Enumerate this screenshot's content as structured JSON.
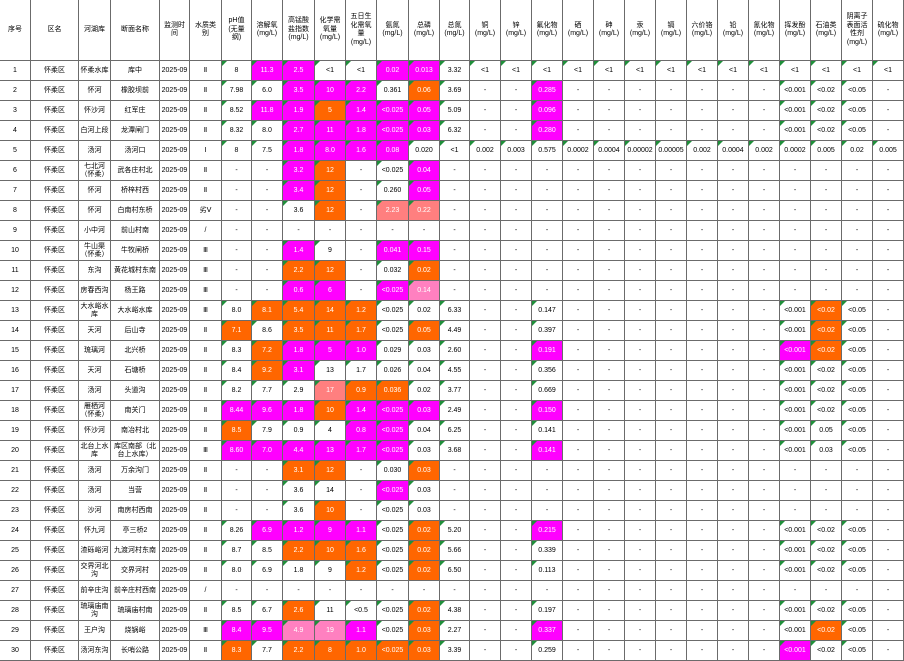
{
  "grid": {
    "columns": [
      "序号",
      "区名",
      "河湖库",
      "断面名称",
      "监测时间",
      "水质类别",
      "pH值(无量纲)",
      "溶解氧(mg/L)",
      "高锰酸盐指数(mg/L)",
      "化学需氧量(mg/L)",
      "五日生化需氧量(mg/L)",
      "氨氮(mg/L)",
      "总磷(mg/L)",
      "总氮(mg/L)",
      "铜(mg/L)",
      "锌(mg/L)",
      "氟化物(mg/L)",
      "硒(mg/L)",
      "砷(mg/L)",
      "汞(mg/L)",
      "镉(mg/L)",
      "六价铬(mg/L)",
      "铅(mg/L)",
      "氰化物(mg/L)",
      "挥发酚(mg/L)",
      "石油类(mg/L)",
      "阴离子表面活性剂(mg/L)",
      "硫化物(mg/L)"
    ],
    "palette": {
      "m": "#ff00ff",
      "o": "#ff6600",
      "s": "#ff7f7f",
      "p": "#ff80c0"
    },
    "triangle_color": "#1f8f3a",
    "rows": [
      [
        "1",
        "怀柔区",
        "怀柔水库",
        "库中",
        "2025-09",
        "Ⅱ",
        "8",
        {
          "v": "11.3",
          "bg": "m"
        },
        {
          "v": "2.5",
          "bg": "m"
        },
        "<1",
        "<1",
        {
          "v": "0.02",
          "bg": "m"
        },
        {
          "v": "0.013",
          "bg": "m"
        },
        "3.32",
        "<1",
        "<1",
        "<1",
        "<1",
        "<1",
        "<1",
        "<1",
        "<1",
        "<1",
        "<1",
        "<1",
        "<1",
        "<1",
        "<1"
      ],
      [
        "2",
        "怀柔区",
        "怀河",
        "橡胶坝前",
        "2025-09",
        "Ⅱ",
        "7.98",
        "6.0",
        {
          "v": "3.5",
          "bg": "m"
        },
        {
          "v": "10",
          "bg": "m"
        },
        {
          "v": "2.2",
          "bg": "m"
        },
        "0.361",
        {
          "v": "0.06",
          "bg": "o"
        },
        "3.69",
        "-",
        "-",
        {
          "v": "0.285",
          "bg": "m"
        },
        "-",
        "-",
        "-",
        "-",
        "-",
        "-",
        "-",
        "<0.001",
        "<0.02",
        "<0.05",
        "-"
      ],
      [
        "3",
        "怀柔区",
        "怀沙河",
        "红军庄",
        "2025-09",
        "Ⅱ",
        "8.52",
        {
          "v": "11.8",
          "bg": "m"
        },
        {
          "v": "1.9",
          "bg": "m"
        },
        {
          "v": "5",
          "bg": "o"
        },
        {
          "v": "1.4",
          "bg": "m"
        },
        {
          "v": "<0.025",
          "bg": "m"
        },
        {
          "v": "0.05",
          "bg": "m"
        },
        "5.09",
        "-",
        "-",
        {
          "v": "0.096",
          "bg": "m"
        },
        "-",
        "-",
        "-",
        "-",
        "-",
        "-",
        "-",
        "<0.001",
        "<0.02",
        "<0.05",
        "-"
      ],
      [
        "4",
        "怀柔区",
        "白河上段",
        "龙潭闸门",
        "2025-09",
        "Ⅱ",
        "8.32",
        "8.0",
        {
          "v": "2.7",
          "bg": "m"
        },
        {
          "v": "11",
          "bg": "m"
        },
        {
          "v": "1.8",
          "bg": "m"
        },
        {
          "v": "<0.025",
          "bg": "m"
        },
        {
          "v": "0.03",
          "bg": "m"
        },
        "6.32",
        "-",
        "-",
        {
          "v": "0.280",
          "bg": "m"
        },
        "-",
        "-",
        "-",
        "-",
        "-",
        "-",
        "-",
        "<0.001",
        "<0.02",
        "<0.05",
        "-"
      ],
      [
        "5",
        "怀柔区",
        "汤河",
        "汤河口",
        "2025-09",
        "Ⅰ",
        "8",
        "7.5",
        {
          "v": "1.8",
          "bg": "m"
        },
        {
          "v": "8.0",
          "bg": "m"
        },
        {
          "v": "1.6",
          "bg": "m"
        },
        {
          "v": "0.08",
          "bg": "m"
        },
        "0.020",
        "<1",
        "0.002",
        "0.003",
        "0.575",
        "0.0002",
        "0.0004",
        "0.00002",
        "0.00005",
        "0.002",
        "0.0004",
        "0.002",
        "0.0002",
        "0.005",
        "0.02",
        "0.005"
      ],
      [
        "6",
        "怀柔区",
        "七北河（怀柔）",
        "武各庄村北",
        "2025-09",
        "Ⅱ",
        "-",
        "-",
        {
          "v": "3.2",
          "bg": "m"
        },
        {
          "v": "12",
          "bg": "o"
        },
        "-",
        "<0.025",
        {
          "v": "0.04",
          "bg": "m"
        },
        "-",
        "-",
        "-",
        "-",
        "-",
        "-",
        "-",
        "-",
        "-",
        "-",
        "-",
        "-",
        "-",
        "-",
        "-"
      ],
      [
        "7",
        "怀柔区",
        "怀河",
        "桥梓村西",
        "2025-09",
        "Ⅱ",
        "-",
        "-",
        {
          "v": "3.4",
          "bg": "m"
        },
        {
          "v": "12",
          "bg": "o"
        },
        "-",
        "0.260",
        {
          "v": "0.05",
          "bg": "m"
        },
        "-",
        "-",
        "-",
        "-",
        "-",
        "-",
        "-",
        "-",
        "-",
        "-",
        "-",
        "-",
        "-",
        "-",
        "-"
      ],
      [
        "8",
        "怀柔区",
        "怀河",
        "白南村东桥",
        "2025-09",
        "劣Ⅴ",
        "-",
        "-",
        "3.6",
        {
          "v": "12",
          "bg": "o"
        },
        "-",
        {
          "v": "2.23",
          "bg": "s"
        },
        {
          "v": "0.22",
          "bg": "s"
        },
        "-",
        "-",
        "-",
        "-",
        "-",
        "-",
        "-",
        "-",
        "-",
        "-",
        "-",
        "-",
        "-",
        "-",
        "-"
      ],
      [
        "9",
        "怀柔区",
        "小中河",
        "前山村南",
        "2025-09",
        "/",
        "-",
        "-",
        "-",
        "-",
        "-",
        "-",
        "-",
        "-",
        "-",
        "-",
        "-",
        "-",
        "-",
        "-",
        "-",
        "-",
        "-",
        "-",
        "-",
        "-",
        "-",
        "-"
      ],
      [
        "10",
        "怀柔区",
        "牛山渠（怀柔）",
        "牛牧闸桥",
        "2025-09",
        "Ⅲ",
        "-",
        "-",
        {
          "v": "1.4",
          "bg": "m"
        },
        "9",
        "-",
        {
          "v": "0.041",
          "bg": "m"
        },
        {
          "v": "0.15",
          "bg": "m"
        },
        "-",
        "-",
        "-",
        "-",
        "-",
        "-",
        "-",
        "-",
        "-",
        "-",
        "-",
        "-",
        "-",
        "-",
        "-"
      ],
      [
        "11",
        "怀柔区",
        "东沟",
        "黄花城村东南",
        "2025-09",
        "Ⅲ",
        "-",
        "-",
        {
          "v": "2.2",
          "bg": "o"
        },
        {
          "v": "12",
          "bg": "o"
        },
        "-",
        "0.032",
        {
          "v": "0.02",
          "bg": "o"
        },
        "-",
        "-",
        "-",
        "-",
        "-",
        "-",
        "-",
        "-",
        "-",
        "-",
        "-",
        "-",
        "-",
        "-",
        "-"
      ],
      [
        "12",
        "怀柔区",
        "房春西沟",
        "杨王路",
        "2025-09",
        "Ⅲ",
        "-",
        "-",
        {
          "v": "0.6",
          "bg": "m"
        },
        {
          "v": "6",
          "bg": "m"
        },
        "-",
        {
          "v": "<0.025",
          "bg": "m"
        },
        {
          "v": "0.14",
          "bg": "p"
        },
        "-",
        "-",
        "-",
        "-",
        "-",
        "-",
        "-",
        "-",
        "-",
        "-",
        "-",
        "-",
        "-",
        "-",
        "-"
      ],
      [
        "13",
        "怀柔区",
        "大水峪水库",
        "大水峪水库",
        "2025-09",
        "Ⅲ",
        "8.0",
        {
          "v": "8.1",
          "bg": "o"
        },
        {
          "v": "5.4",
          "bg": "o"
        },
        {
          "v": "14",
          "bg": "o"
        },
        {
          "v": "1.2",
          "bg": "o"
        },
        "<0.025",
        "0.02",
        "6.33",
        "-",
        "-",
        "0.147",
        "-",
        "-",
        "-",
        "-",
        "-",
        "-",
        "-",
        "<0.001",
        {
          "v": "<0.02",
          "bg": "o"
        },
        "<0.05",
        "-"
      ],
      [
        "14",
        "怀柔区",
        "天河",
        "后山寺",
        "2025-09",
        "Ⅱ",
        {
          "v": "7.1",
          "bg": "o"
        },
        "8.6",
        {
          "v": "3.5",
          "bg": "o"
        },
        {
          "v": "11",
          "bg": "o"
        },
        {
          "v": "1.7",
          "bg": "o"
        },
        "<0.025",
        {
          "v": "0.05",
          "bg": "o"
        },
        "4.49",
        "-",
        "-",
        "0.397",
        "-",
        "-",
        "-",
        "-",
        "-",
        "-",
        "-",
        "<0.001",
        {
          "v": "<0.02",
          "bg": "o"
        },
        "<0.05",
        "-"
      ],
      [
        "15",
        "怀柔区",
        "琉璃河",
        "北兴桥",
        "2025-09",
        "Ⅱ",
        "8.3",
        {
          "v": "7.2",
          "bg": "o"
        },
        {
          "v": "1.8",
          "bg": "m"
        },
        {
          "v": "5",
          "bg": "m"
        },
        {
          "v": "1.0",
          "bg": "m"
        },
        "0.029",
        "0.03",
        "2.60",
        "-",
        "-",
        {
          "v": "0.191",
          "bg": "m"
        },
        "-",
        "-",
        "-",
        "-",
        "-",
        "-",
        "-",
        {
          "v": "<0.001",
          "bg": "m"
        },
        {
          "v": "<0.02",
          "bg": "o"
        },
        "<0.05",
        "-"
      ],
      [
        "16",
        "怀柔区",
        "天河",
        "石塘桥",
        "2025-09",
        "Ⅱ",
        "8.4",
        {
          "v": "9.2",
          "bg": "o"
        },
        {
          "v": "3.1",
          "bg": "m"
        },
        "13",
        "1.7",
        "0.026",
        "0.04",
        "4.55",
        "-",
        "-",
        "0.356",
        "-",
        "-",
        "-",
        "-",
        "-",
        "-",
        "-",
        "<0.001",
        "<0.02",
        "<0.05",
        "-"
      ],
      [
        "17",
        "怀柔区",
        "汤河",
        "头道沟",
        "2025-09",
        "Ⅱ",
        "8.2",
        "7.7",
        "2.9",
        {
          "v": "17",
          "bg": "s"
        },
        {
          "v": "0.9",
          "bg": "o"
        },
        {
          "v": "0.036",
          "bg": "o"
        },
        "0.02",
        "3.77",
        "-",
        "-",
        "0.669",
        "-",
        "-",
        "-",
        "-",
        "-",
        "-",
        "-",
        "<0.001",
        "<0.02",
        "<0.05",
        "-"
      ],
      [
        "18",
        "怀柔区",
        "雁栖河（怀柔）",
        "南关门",
        "2025-09",
        "Ⅱ",
        {
          "v": "8.44",
          "bg": "m"
        },
        {
          "v": "9.6",
          "bg": "m"
        },
        {
          "v": "1.8",
          "bg": "m"
        },
        {
          "v": "10",
          "bg": "o"
        },
        {
          "v": "1.4",
          "bg": "m"
        },
        {
          "v": "<0.025",
          "bg": "m"
        },
        {
          "v": "0.03",
          "bg": "m"
        },
        "2.49",
        "-",
        "-",
        {
          "v": "0.150",
          "bg": "m"
        },
        "-",
        "-",
        "-",
        "-",
        "-",
        "-",
        "-",
        "<0.001",
        "<0.02",
        "<0.05",
        "-"
      ],
      [
        "19",
        "怀柔区",
        "怀沙河",
        "南冶村北",
        "2025-09",
        "Ⅱ",
        {
          "v": "8.5",
          "bg": "o"
        },
        "7.9",
        "0.9",
        "4",
        {
          "v": "0.8",
          "bg": "m"
        },
        {
          "v": "<0.025",
          "bg": "m"
        },
        "0.04",
        "6.25",
        "-",
        "-",
        "0.141",
        "-",
        "-",
        "-",
        "-",
        "-",
        "-",
        "-",
        "<0.001",
        "0.05",
        "<0.05",
        "-"
      ],
      [
        "20",
        "怀柔区",
        "北台上水库",
        "库区南部（北台上水库）",
        "2025-09",
        "Ⅲ",
        {
          "v": "8.60",
          "bg": "m"
        },
        {
          "v": "7.0",
          "bg": "m"
        },
        {
          "v": "4.4",
          "bg": "m"
        },
        {
          "v": "13",
          "bg": "m"
        },
        {
          "v": "1.7",
          "bg": "m"
        },
        {
          "v": "<0.025",
          "bg": "m"
        },
        "0.03",
        "3.68",
        "-",
        "-",
        {
          "v": "0.141",
          "bg": "m"
        },
        "-",
        "-",
        "-",
        "-",
        "-",
        "-",
        "-",
        "<0.001",
        "0.03",
        "<0.05",
        "-"
      ],
      [
        "21",
        "怀柔区",
        "汤河",
        "万余沟门",
        "2025-09",
        "Ⅱ",
        "-",
        "-",
        {
          "v": "3.1",
          "bg": "o"
        },
        {
          "v": "12",
          "bg": "o"
        },
        "-",
        "0.030",
        {
          "v": "0.03",
          "bg": "o"
        },
        "-",
        "-",
        "-",
        "-",
        "-",
        "-",
        "-",
        "-",
        "-",
        "-",
        "-",
        "-",
        "-",
        "-",
        "-"
      ],
      [
        "22",
        "怀柔区",
        "汤河",
        "当营",
        "2025-09",
        "Ⅱ",
        "-",
        "-",
        "3.6",
        "14",
        "-",
        {
          "v": "<0.025",
          "bg": "m"
        },
        "0.03",
        "-",
        "-",
        "-",
        "-",
        "-",
        "-",
        "-",
        "-",
        "-",
        "-",
        "-",
        "-",
        "-",
        "-",
        "-"
      ],
      [
        "23",
        "怀柔区",
        "沙河",
        "南房村西南",
        "2025-09",
        "Ⅱ",
        "-",
        "-",
        "3.6",
        {
          "v": "10",
          "bg": "o"
        },
        "-",
        "<0.025",
        "0.03",
        "-",
        "-",
        "-",
        "-",
        "-",
        "-",
        "-",
        "-",
        "-",
        "-",
        "-",
        "-",
        "-",
        "-",
        "-"
      ],
      [
        "24",
        "怀柔区",
        "怀九河",
        "亭三桥2",
        "2025-09",
        "Ⅱ",
        "8.26",
        {
          "v": "6.9",
          "bg": "m"
        },
        {
          "v": "1.2",
          "bg": "m"
        },
        {
          "v": "9",
          "bg": "m"
        },
        {
          "v": "1.1",
          "bg": "m"
        },
        "<0.025",
        {
          "v": "0.02",
          "bg": "o"
        },
        "5.20",
        "-",
        "-",
        {
          "v": "0.215",
          "bg": "m"
        },
        "-",
        "-",
        "-",
        "-",
        "-",
        "-",
        "-",
        "<0.001",
        "<0.02",
        "<0.05",
        "-"
      ],
      [
        "25",
        "怀柔区",
        "渣砾峪河",
        "九渡河村东南",
        "2025-09",
        "Ⅱ",
        "8.7",
        "8.5",
        {
          "v": "2.2",
          "bg": "o"
        },
        {
          "v": "10",
          "bg": "o"
        },
        {
          "v": "1.6",
          "bg": "o"
        },
        "<0.025",
        {
          "v": "0.02",
          "bg": "o"
        },
        "5.66",
        "-",
        "-",
        "0.339",
        "-",
        "-",
        "-",
        "-",
        "-",
        "-",
        "-",
        "<0.001",
        "<0.02",
        "<0.05",
        "-"
      ],
      [
        "26",
        "怀柔区",
        "交界河北沟",
        "交界河村",
        "2025-09",
        "Ⅱ",
        "8.0",
        "6.9",
        "1.8",
        "9",
        {
          "v": "1.2",
          "bg": "o"
        },
        "<0.025",
        {
          "v": "0.02",
          "bg": "o"
        },
        "6.50",
        "-",
        "-",
        "0.113",
        "-",
        "-",
        "-",
        "-",
        "-",
        "-",
        "-",
        "<0.001",
        "<0.02",
        "<0.05",
        "-"
      ],
      [
        "27",
        "怀柔区",
        "前辛庄沟",
        "前辛庄村西南",
        "2025-09",
        "/",
        "-",
        "-",
        "-",
        "-",
        "-",
        "-",
        "-",
        "-",
        "-",
        "-",
        "-",
        "-",
        "-",
        "-",
        "-",
        "-",
        "-",
        "-",
        "-",
        "-",
        "-",
        "-"
      ],
      [
        "28",
        "怀柔区",
        "琉璃庙南沟",
        "琉璃庙村南",
        "2025-09",
        "Ⅱ",
        "8.5",
        "6.7",
        {
          "v": "2.6",
          "bg": "o"
        },
        "11",
        "<0.5",
        "<0.025",
        {
          "v": "0.02",
          "bg": "o"
        },
        "4.38",
        "-",
        "-",
        "0.197",
        "-",
        "-",
        "-",
        "-",
        "-",
        "-",
        "-",
        "<0.001",
        "<0.02",
        "<0.05",
        "-"
      ],
      [
        "29",
        "怀柔区",
        "王户沟",
        "烧锅峪",
        "2025-09",
        "Ⅲ",
        {
          "v": "8.4",
          "bg": "m"
        },
        {
          "v": "9.5",
          "bg": "m"
        },
        {
          "v": "4.9",
          "bg": "p"
        },
        {
          "v": "19",
          "bg": "p"
        },
        {
          "v": "1.1",
          "bg": "m"
        },
        "<0.025",
        {
          "v": "0.03",
          "bg": "o"
        },
        "2.27",
        "-",
        "-",
        {
          "v": "0.337",
          "bg": "m"
        },
        "-",
        "-",
        "-",
        "-",
        "-",
        "-",
        "-",
        "<0.001",
        {
          "v": "<0.02",
          "bg": "o"
        },
        "<0.05",
        "-"
      ],
      [
        "30",
        "怀柔区",
        "汤河东沟",
        "长哨公路",
        "2025-09",
        "Ⅱ",
        {
          "v": "8.3",
          "bg": "o"
        },
        "7.7",
        {
          "v": "2.2",
          "bg": "o"
        },
        {
          "v": "8",
          "bg": "o"
        },
        {
          "v": "1.0",
          "bg": "o"
        },
        {
          "v": "<0.025",
          "bg": "o"
        },
        {
          "v": "0.03",
          "bg": "o"
        },
        "3.39",
        "-",
        "-",
        "0.259",
        "-",
        "-",
        "-",
        "-",
        "-",
        "-",
        "-",
        {
          "v": "<0.001",
          "bg": "m"
        },
        "<0.02",
        "<0.05",
        "-"
      ]
    ]
  }
}
